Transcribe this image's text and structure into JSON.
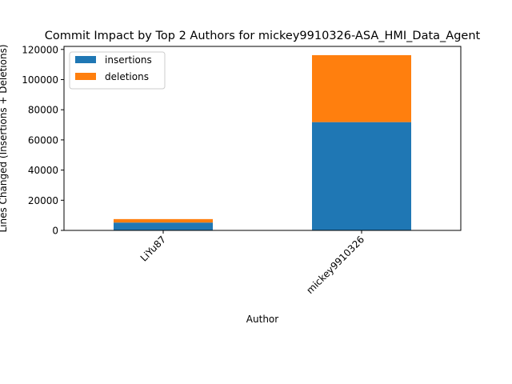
{
  "chart_data": {
    "type": "bar",
    "stacked": true,
    "title": "Commit Impact by Top 2 Authors for mickey9910326-ASA_HMI_Data_Agent",
    "xlabel": "Author",
    "ylabel": "Lines Changed (Insertions + Deletions)",
    "categories": [
      "LiYu87",
      "mickey9910326"
    ],
    "series": [
      {
        "name": "insertions",
        "color": "#1f77b4",
        "values": [
          5200,
          71800
        ]
      },
      {
        "name": "deletions",
        "color": "#ff7f0e",
        "values": [
          2300,
          44400
        ]
      }
    ],
    "ylim": [
      0,
      122000
    ],
    "yticks": [
      0,
      20000,
      40000,
      60000,
      80000,
      100000,
      120000
    ],
    "grid": false,
    "legend_position": "top-left"
  }
}
